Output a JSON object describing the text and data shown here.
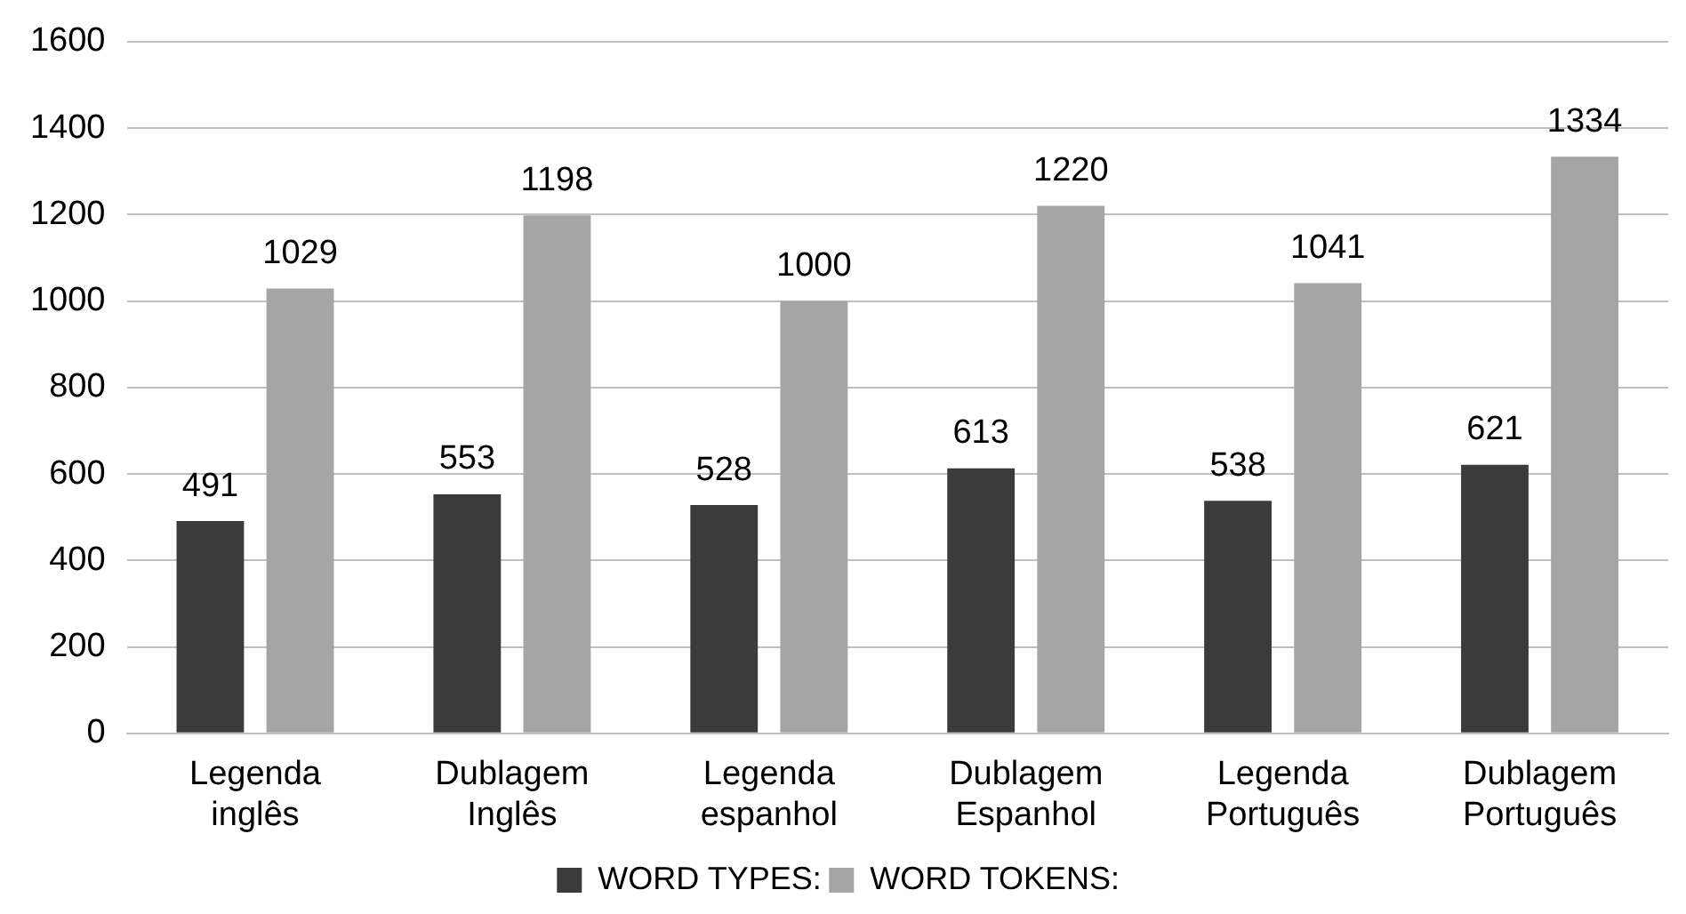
{
  "chart_data": {
    "type": "bar",
    "categories": [
      "Legenda inglês",
      "Dublagem Inglês",
      "Legenda espanhol",
      "Dublagem Espanhol",
      "Legenda Português",
      "Dublagem Português"
    ],
    "series": [
      {
        "name": "WORD TYPES:",
        "color": "#3b3b3b",
        "values": [
          491,
          553,
          528,
          613,
          538,
          621
        ]
      },
      {
        "name": "WORD TOKENS:",
        "color": "#a5a5a5",
        "values": [
          1029,
          1198,
          1000,
          1220,
          1041,
          1334
        ]
      }
    ],
    "ylim": [
      0,
      1600
    ],
    "yticks": [
      0,
      200,
      400,
      600,
      800,
      1000,
      1200,
      1400,
      1600
    ],
    "grid": "y",
    "legend": "bottom",
    "data_labels": true
  }
}
